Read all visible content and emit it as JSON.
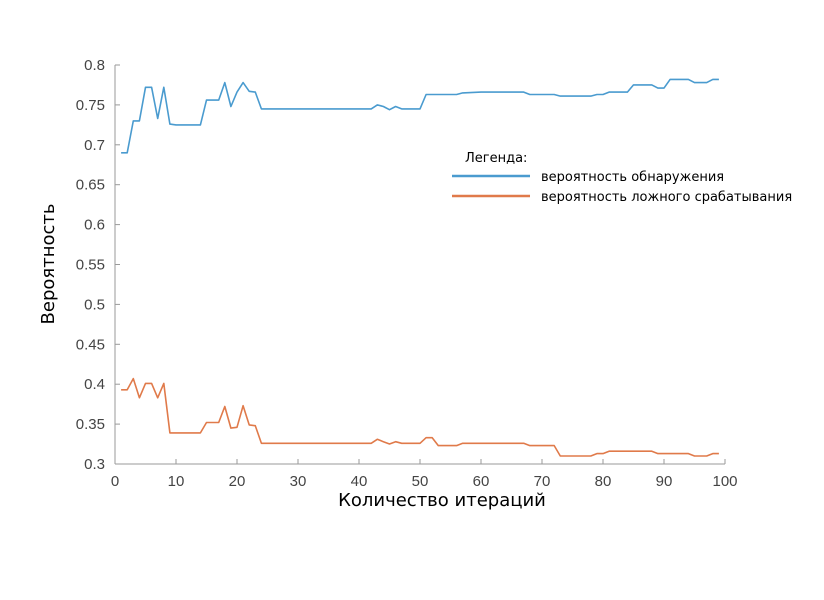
{
  "chart_data": {
    "type": "line",
    "xlabel": "Количество итераций",
    "ylabel": "Вероятность",
    "xlim": [
      0,
      100
    ],
    "ylim": [
      0.3,
      0.8
    ],
    "xticks": [
      "0",
      "10",
      "20",
      "30",
      "40",
      "50",
      "60",
      "70",
      "80",
      "90",
      "100"
    ],
    "yticks": [
      "0.3",
      "0.35",
      "0.4",
      "0.45",
      "0.5",
      "0.55",
      "0.6",
      "0.65",
      "0.7",
      "0.75",
      "0.8"
    ],
    "grid": false,
    "legend": {
      "title": "Легенда:",
      "placement": "center-right"
    },
    "series": [
      {
        "name": "вероятность обнаружения",
        "color": "#4a9bcf",
        "points": [
          [
            1,
            0.69
          ],
          [
            2,
            0.69
          ],
          [
            3,
            0.73
          ],
          [
            4,
            0.73
          ],
          [
            5,
            0.772
          ],
          [
            6,
            0.772
          ],
          [
            7,
            0.733
          ],
          [
            8,
            0.772
          ],
          [
            9,
            0.726
          ],
          [
            10,
            0.725
          ],
          [
            11,
            0.725
          ],
          [
            12,
            0.725
          ],
          [
            13,
            0.725
          ],
          [
            14,
            0.725
          ],
          [
            15,
            0.756
          ],
          [
            16,
            0.756
          ],
          [
            17,
            0.756
          ],
          [
            18,
            0.778
          ],
          [
            19,
            0.748
          ],
          [
            20,
            0.766
          ],
          [
            21,
            0.778
          ],
          [
            22,
            0.767
          ],
          [
            23,
            0.766
          ],
          [
            24,
            0.745
          ],
          [
            25,
            0.745
          ],
          [
            30,
            0.745
          ],
          [
            35,
            0.745
          ],
          [
            40,
            0.745
          ],
          [
            42,
            0.745
          ],
          [
            43,
            0.75
          ],
          [
            44,
            0.748
          ],
          [
            45,
            0.744
          ],
          [
            46,
            0.748
          ],
          [
            47,
            0.745
          ],
          [
            48,
            0.745
          ],
          [
            49,
            0.745
          ],
          [
            50,
            0.745
          ],
          [
            51,
            0.763
          ],
          [
            52,
            0.763
          ],
          [
            55,
            0.763
          ],
          [
            56,
            0.763
          ],
          [
            57,
            0.765
          ],
          [
            60,
            0.766
          ],
          [
            65,
            0.766
          ],
          [
            67,
            0.766
          ],
          [
            68,
            0.763
          ],
          [
            72,
            0.763
          ],
          [
            73,
            0.761
          ],
          [
            78,
            0.761
          ],
          [
            79,
            0.763
          ],
          [
            80,
            0.763
          ],
          [
            81,
            0.766
          ],
          [
            84,
            0.766
          ],
          [
            85,
            0.775
          ],
          [
            88,
            0.775
          ],
          [
            89,
            0.771
          ],
          [
            90,
            0.771
          ],
          [
            91,
            0.782
          ],
          [
            94,
            0.782
          ],
          [
            95,
            0.778
          ],
          [
            97,
            0.778
          ],
          [
            98,
            0.782
          ],
          [
            99,
            0.782
          ]
        ]
      },
      {
        "name": "вероятность ложного срабатывания",
        "color": "#e07a4a",
        "points": [
          [
            1,
            0.393
          ],
          [
            2,
            0.393
          ],
          [
            3,
            0.407
          ],
          [
            4,
            0.383
          ],
          [
            5,
            0.401
          ],
          [
            6,
            0.401
          ],
          [
            7,
            0.383
          ],
          [
            8,
            0.401
          ],
          [
            9,
            0.339
          ],
          [
            10,
            0.339
          ],
          [
            11,
            0.339
          ],
          [
            12,
            0.339
          ],
          [
            13,
            0.339
          ],
          [
            14,
            0.339
          ],
          [
            15,
            0.352
          ],
          [
            16,
            0.352
          ],
          [
            17,
            0.352
          ],
          [
            18,
            0.372
          ],
          [
            19,
            0.345
          ],
          [
            20,
            0.346
          ],
          [
            21,
            0.373
          ],
          [
            22,
            0.349
          ],
          [
            23,
            0.348
          ],
          [
            24,
            0.326
          ],
          [
            25,
            0.326
          ],
          [
            30,
            0.326
          ],
          [
            35,
            0.326
          ],
          [
            40,
            0.326
          ],
          [
            42,
            0.326
          ],
          [
            43,
            0.331
          ],
          [
            44,
            0.328
          ],
          [
            45,
            0.325
          ],
          [
            46,
            0.328
          ],
          [
            47,
            0.326
          ],
          [
            48,
            0.326
          ],
          [
            50,
            0.326
          ],
          [
            51,
            0.333
          ],
          [
            52,
            0.333
          ],
          [
            53,
            0.323
          ],
          [
            54,
            0.323
          ],
          [
            56,
            0.323
          ],
          [
            57,
            0.326
          ],
          [
            60,
            0.326
          ],
          [
            65,
            0.326
          ],
          [
            67,
            0.326
          ],
          [
            68,
            0.323
          ],
          [
            72,
            0.323
          ],
          [
            73,
            0.31
          ],
          [
            78,
            0.31
          ],
          [
            79,
            0.313
          ],
          [
            80,
            0.313
          ],
          [
            81,
            0.316
          ],
          [
            85,
            0.316
          ],
          [
            88,
            0.316
          ],
          [
            89,
            0.313
          ],
          [
            94,
            0.313
          ],
          [
            95,
            0.31
          ],
          [
            97,
            0.31
          ],
          [
            98,
            0.313
          ],
          [
            99,
            0.313
          ]
        ]
      }
    ]
  }
}
